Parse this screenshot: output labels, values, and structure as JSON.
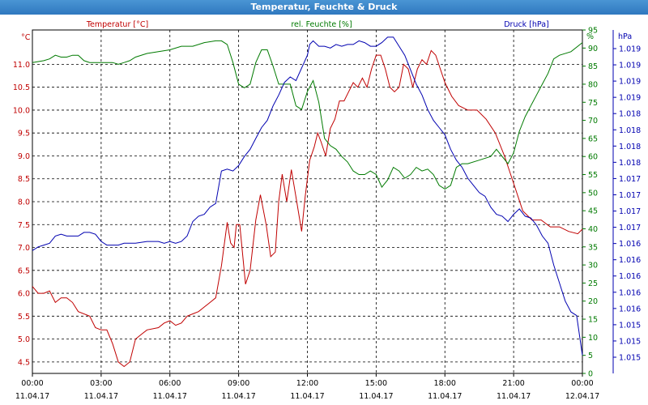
{
  "window": {
    "title": "Temperatur, Feuchte & Druck"
  },
  "colors": {
    "temperature": "#c00000",
    "humidity": "#007a00",
    "pressure": "#0000b0",
    "grid": "#000000",
    "titlebar": "#3a84c9"
  },
  "chart_data": {
    "type": "line",
    "title": "Temperatur, Feuchte & Druck",
    "grid": true,
    "legend": "top",
    "x_ticks": [
      {
        "time": "00:00",
        "date": "11.04.17"
      },
      {
        "time": "03:00",
        "date": "11.04.17"
      },
      {
        "time": "06:00",
        "date": "11.04.17"
      },
      {
        "time": "09:00",
        "date": "11.04.17"
      },
      {
        "time": "12:00",
        "date": "11.04.17"
      },
      {
        "time": "15:00",
        "date": "11.04.17"
      },
      {
        "time": "18:00",
        "date": "11.04.17"
      },
      {
        "time": "21:00",
        "date": "11.04.17"
      },
      {
        "time": "00:00",
        "date": "12.04.17"
      }
    ],
    "xlim_hours": [
      0,
      24
    ],
    "axes": {
      "temperature": {
        "label": "Temperatur [°C]",
        "unit": "°C",
        "ylim": [
          4.25,
          11.75
        ],
        "tick_values": [
          4.5,
          5.0,
          5.5,
          6.0,
          6.5,
          7.0,
          7.5,
          8.0,
          8.5,
          9.0,
          9.5,
          10.0,
          10.5,
          11.0
        ],
        "tick_labels": [
          "4.5",
          "5.0",
          "5.5",
          "6.0",
          "6.5",
          "7.0",
          "7.5",
          "8.0",
          "8.5",
          "9.0",
          "9.5",
          "10.0",
          "10.5",
          "11.0"
        ]
      },
      "humidity": {
        "label": "rel. Feuchte [%]",
        "unit": "%",
        "ylim": [
          0,
          95
        ],
        "tick_values": [
          0,
          5,
          10,
          15,
          20,
          25,
          30,
          35,
          40,
          45,
          50,
          55,
          60,
          65,
          70,
          75,
          80,
          85,
          90,
          95
        ],
        "tick_labels": [
          "0",
          "5",
          "10",
          "15",
          "20",
          "25",
          "30",
          "35",
          "40",
          "45",
          "50",
          "55",
          "60",
          "65",
          "70",
          "75",
          "80",
          "85",
          "90",
          "95"
        ]
      },
      "pressure": {
        "label": "Druck [hPa]",
        "unit": "hPa",
        "tick_labels": [
          "1.015",
          "1.015",
          "1.015",
          "1.016",
          "1.016",
          "1.016",
          "1.016",
          "1.016",
          "1.017",
          "1.017",
          "1.017",
          "1.017",
          "1.018",
          "1.018",
          "1.018",
          "1.018",
          "1.019",
          "1.019",
          "1.019",
          "1.019"
        ]
      }
    },
    "series": [
      {
        "name": "Temperatur [°C]",
        "axis": "temperature",
        "points": [
          [
            0,
            6.15
          ],
          [
            0.25,
            6.0
          ],
          [
            0.5,
            6.0
          ],
          [
            0.75,
            6.05
          ],
          [
            1.0,
            5.8
          ],
          [
            1.25,
            5.9
          ],
          [
            1.5,
            5.9
          ],
          [
            1.75,
            5.8
          ],
          [
            2.0,
            5.6
          ],
          [
            2.5,
            5.5
          ],
          [
            2.75,
            5.25
          ],
          [
            3.0,
            5.2
          ],
          [
            3.25,
            5.2
          ],
          [
            3.5,
            4.9
          ],
          [
            3.75,
            4.5
          ],
          [
            4.0,
            4.4
          ],
          [
            4.25,
            4.5
          ],
          [
            4.5,
            5.0
          ],
          [
            4.75,
            5.1
          ],
          [
            5.0,
            5.2
          ],
          [
            5.5,
            5.25
          ],
          [
            5.75,
            5.35
          ],
          [
            6.0,
            5.4
          ],
          [
            6.25,
            5.3
          ],
          [
            6.5,
            5.35
          ],
          [
            6.75,
            5.5
          ],
          [
            7.0,
            5.55
          ],
          [
            7.25,
            5.6
          ],
          [
            7.5,
            5.7
          ],
          [
            7.75,
            5.8
          ],
          [
            8.0,
            5.9
          ],
          [
            8.25,
            6.6
          ],
          [
            8.5,
            7.55
          ],
          [
            8.65,
            7.1
          ],
          [
            8.8,
            7.0
          ],
          [
            8.9,
            7.5
          ],
          [
            9.05,
            7.5
          ],
          [
            9.3,
            6.2
          ],
          [
            9.5,
            6.5
          ],
          [
            9.75,
            7.6
          ],
          [
            9.95,
            8.15
          ],
          [
            10.2,
            7.5
          ],
          [
            10.4,
            6.8
          ],
          [
            10.6,
            6.9
          ],
          [
            10.75,
            8.0
          ],
          [
            10.9,
            8.6
          ],
          [
            11.1,
            8.0
          ],
          [
            11.3,
            8.7
          ],
          [
            11.5,
            8.1
          ],
          [
            11.75,
            7.35
          ],
          [
            11.9,
            8.1
          ],
          [
            12.1,
            8.9
          ],
          [
            12.3,
            9.2
          ],
          [
            12.45,
            9.5
          ],
          [
            12.6,
            9.3
          ],
          [
            12.8,
            9.0
          ],
          [
            13.0,
            9.6
          ],
          [
            13.2,
            9.8
          ],
          [
            13.4,
            10.2
          ],
          [
            13.6,
            10.2
          ],
          [
            13.8,
            10.4
          ],
          [
            14.0,
            10.6
          ],
          [
            14.2,
            10.5
          ],
          [
            14.4,
            10.7
          ],
          [
            14.6,
            10.5
          ],
          [
            14.8,
            10.9
          ],
          [
            15.0,
            11.2
          ],
          [
            15.2,
            11.2
          ],
          [
            15.4,
            10.9
          ],
          [
            15.6,
            10.5
          ],
          [
            15.8,
            10.4
          ],
          [
            16.0,
            10.5
          ],
          [
            16.2,
            11.0
          ],
          [
            16.4,
            10.9
          ],
          [
            16.6,
            10.5
          ],
          [
            16.8,
            10.9
          ],
          [
            17.0,
            11.1
          ],
          [
            17.2,
            11.0
          ],
          [
            17.4,
            11.3
          ],
          [
            17.6,
            11.2
          ],
          [
            17.8,
            10.9
          ],
          [
            18.0,
            10.6
          ],
          [
            18.3,
            10.3
          ],
          [
            18.6,
            10.1
          ],
          [
            19.0,
            10.0
          ],
          [
            19.4,
            10.0
          ],
          [
            19.8,
            9.8
          ],
          [
            20.2,
            9.5
          ],
          [
            20.6,
            9.0
          ],
          [
            21.0,
            8.4
          ],
          [
            21.4,
            7.8
          ],
          [
            21.8,
            7.6
          ],
          [
            22.2,
            7.6
          ],
          [
            22.6,
            7.45
          ],
          [
            23.0,
            7.45
          ],
          [
            23.4,
            7.35
          ],
          [
            23.8,
            7.3
          ],
          [
            24.0,
            7.4
          ]
        ]
      },
      {
        "name": "rel. Feuchte [%]",
        "axis": "humidity",
        "points": [
          [
            0,
            86
          ],
          [
            0.5,
            86.5
          ],
          [
            0.75,
            87
          ],
          [
            1.0,
            88
          ],
          [
            1.25,
            87.5
          ],
          [
            1.5,
            87.5
          ],
          [
            1.75,
            88
          ],
          [
            2.0,
            88
          ],
          [
            2.25,
            86.5
          ],
          [
            2.5,
            86
          ],
          [
            3.0,
            86
          ],
          [
            3.5,
            86
          ],
          [
            3.75,
            85.5
          ],
          [
            4.0,
            86
          ],
          [
            4.25,
            86.5
          ],
          [
            4.5,
            87.5
          ],
          [
            5.0,
            88.5
          ],
          [
            5.5,
            89
          ],
          [
            6.0,
            89.5
          ],
          [
            6.5,
            90.5
          ],
          [
            7.0,
            90.5
          ],
          [
            7.5,
            91.5
          ],
          [
            8.0,
            92
          ],
          [
            8.25,
            92
          ],
          [
            8.5,
            91
          ],
          [
            8.75,
            86
          ],
          [
            9.0,
            80
          ],
          [
            9.25,
            79
          ],
          [
            9.5,
            80
          ],
          [
            9.75,
            86
          ],
          [
            10.0,
            89.5
          ],
          [
            10.25,
            89.5
          ],
          [
            10.5,
            85
          ],
          [
            10.75,
            80
          ],
          [
            11.0,
            80
          ],
          [
            11.25,
            80
          ],
          [
            11.5,
            74
          ],
          [
            11.75,
            73
          ],
          [
            12.0,
            78
          ],
          [
            12.25,
            81
          ],
          [
            12.5,
            75
          ],
          [
            12.75,
            65
          ],
          [
            13.0,
            63
          ],
          [
            13.25,
            62
          ],
          [
            13.5,
            60
          ],
          [
            13.75,
            58.5
          ],
          [
            14.0,
            56
          ],
          [
            14.25,
            55
          ],
          [
            14.5,
            55
          ],
          [
            14.75,
            56
          ],
          [
            15.0,
            55
          ],
          [
            15.25,
            51.5
          ],
          [
            15.5,
            53.5
          ],
          [
            15.75,
            57
          ],
          [
            16.0,
            56
          ],
          [
            16.25,
            54
          ],
          [
            16.5,
            55
          ],
          [
            16.75,
            57
          ],
          [
            17.0,
            56
          ],
          [
            17.25,
            56.5
          ],
          [
            17.5,
            55
          ],
          [
            17.75,
            52
          ],
          [
            18.0,
            51
          ],
          [
            18.25,
            52
          ],
          [
            18.5,
            57
          ],
          [
            18.75,
            58
          ],
          [
            19.0,
            58
          ],
          [
            19.5,
            59
          ],
          [
            20.0,
            60
          ],
          [
            20.25,
            62
          ],
          [
            20.5,
            60
          ],
          [
            20.75,
            58
          ],
          [
            21.0,
            61
          ],
          [
            21.25,
            67
          ],
          [
            21.5,
            71
          ],
          [
            21.75,
            74
          ],
          [
            22.0,
            77
          ],
          [
            22.25,
            80
          ],
          [
            22.5,
            83
          ],
          [
            22.75,
            87
          ],
          [
            23.0,
            88
          ],
          [
            23.5,
            89
          ],
          [
            24.0,
            91.5
          ]
        ]
      },
      {
        "name": "Druck [hPa]",
        "axis": "pressure",
        "points": [
          [
            0,
            34
          ],
          [
            0.25,
            35
          ],
          [
            0.5,
            35.5
          ],
          [
            0.75,
            36
          ],
          [
            1.0,
            38
          ],
          [
            1.25,
            38.5
          ],
          [
            1.5,
            38
          ],
          [
            1.75,
            38
          ],
          [
            2.0,
            38
          ],
          [
            2.25,
            39
          ],
          [
            2.5,
            39
          ],
          [
            2.75,
            38.5
          ],
          [
            3.0,
            36.5
          ],
          [
            3.25,
            35.5
          ],
          [
            3.5,
            35.5
          ],
          [
            3.75,
            35.5
          ],
          [
            4.0,
            36
          ],
          [
            4.5,
            36
          ],
          [
            5.0,
            36.5
          ],
          [
            5.5,
            36.5
          ],
          [
            5.75,
            36
          ],
          [
            6.0,
            36.5
          ],
          [
            6.25,
            36
          ],
          [
            6.5,
            36.5
          ],
          [
            6.75,
            38
          ],
          [
            7.0,
            42
          ],
          [
            7.25,
            43.5
          ],
          [
            7.5,
            44
          ],
          [
            7.75,
            46
          ],
          [
            8.0,
            47
          ],
          [
            8.25,
            56
          ],
          [
            8.5,
            56.5
          ],
          [
            8.75,
            56
          ],
          [
            9.0,
            57.5
          ],
          [
            9.25,
            60
          ],
          [
            9.5,
            62
          ],
          [
            9.75,
            65
          ],
          [
            10.0,
            68
          ],
          [
            10.25,
            70
          ],
          [
            10.5,
            74
          ],
          [
            10.75,
            77
          ],
          [
            11.0,
            80.5
          ],
          [
            11.25,
            82
          ],
          [
            11.5,
            81
          ],
          [
            11.75,
            84.5
          ],
          [
            12.0,
            88
          ],
          [
            12.1,
            91
          ],
          [
            12.25,
            92
          ],
          [
            12.5,
            90.5
          ],
          [
            12.75,
            90.5
          ],
          [
            13.0,
            90
          ],
          [
            13.25,
            91
          ],
          [
            13.5,
            90.5
          ],
          [
            13.75,
            91
          ],
          [
            14.0,
            91
          ],
          [
            14.25,
            92
          ],
          [
            14.5,
            91.5
          ],
          [
            14.75,
            90.5
          ],
          [
            15.0,
            90.5
          ],
          [
            15.25,
            91.5
          ],
          [
            15.5,
            93
          ],
          [
            15.75,
            93
          ],
          [
            16.0,
            90.5
          ],
          [
            16.25,
            88
          ],
          [
            16.5,
            84
          ],
          [
            16.75,
            80
          ],
          [
            17.0,
            77
          ],
          [
            17.25,
            73
          ],
          [
            17.5,
            70
          ],
          [
            17.75,
            68
          ],
          [
            18.0,
            66
          ],
          [
            18.25,
            62
          ],
          [
            18.5,
            59
          ],
          [
            18.75,
            57
          ],
          [
            19.0,
            54
          ],
          [
            19.25,
            52
          ],
          [
            19.5,
            50
          ],
          [
            19.75,
            49
          ],
          [
            20.0,
            46
          ],
          [
            20.25,
            44
          ],
          [
            20.5,
            43.5
          ],
          [
            20.75,
            42
          ],
          [
            21.0,
            44
          ],
          [
            21.25,
            45.5
          ],
          [
            21.5,
            43.5
          ],
          [
            21.75,
            43
          ],
          [
            22.0,
            41
          ],
          [
            22.25,
            38
          ],
          [
            22.5,
            36
          ],
          [
            22.75,
            30
          ],
          [
            23.0,
            25
          ],
          [
            23.25,
            20
          ],
          [
            23.5,
            17
          ],
          [
            23.75,
            16
          ],
          [
            24.0,
            5
          ]
        ]
      }
    ]
  }
}
